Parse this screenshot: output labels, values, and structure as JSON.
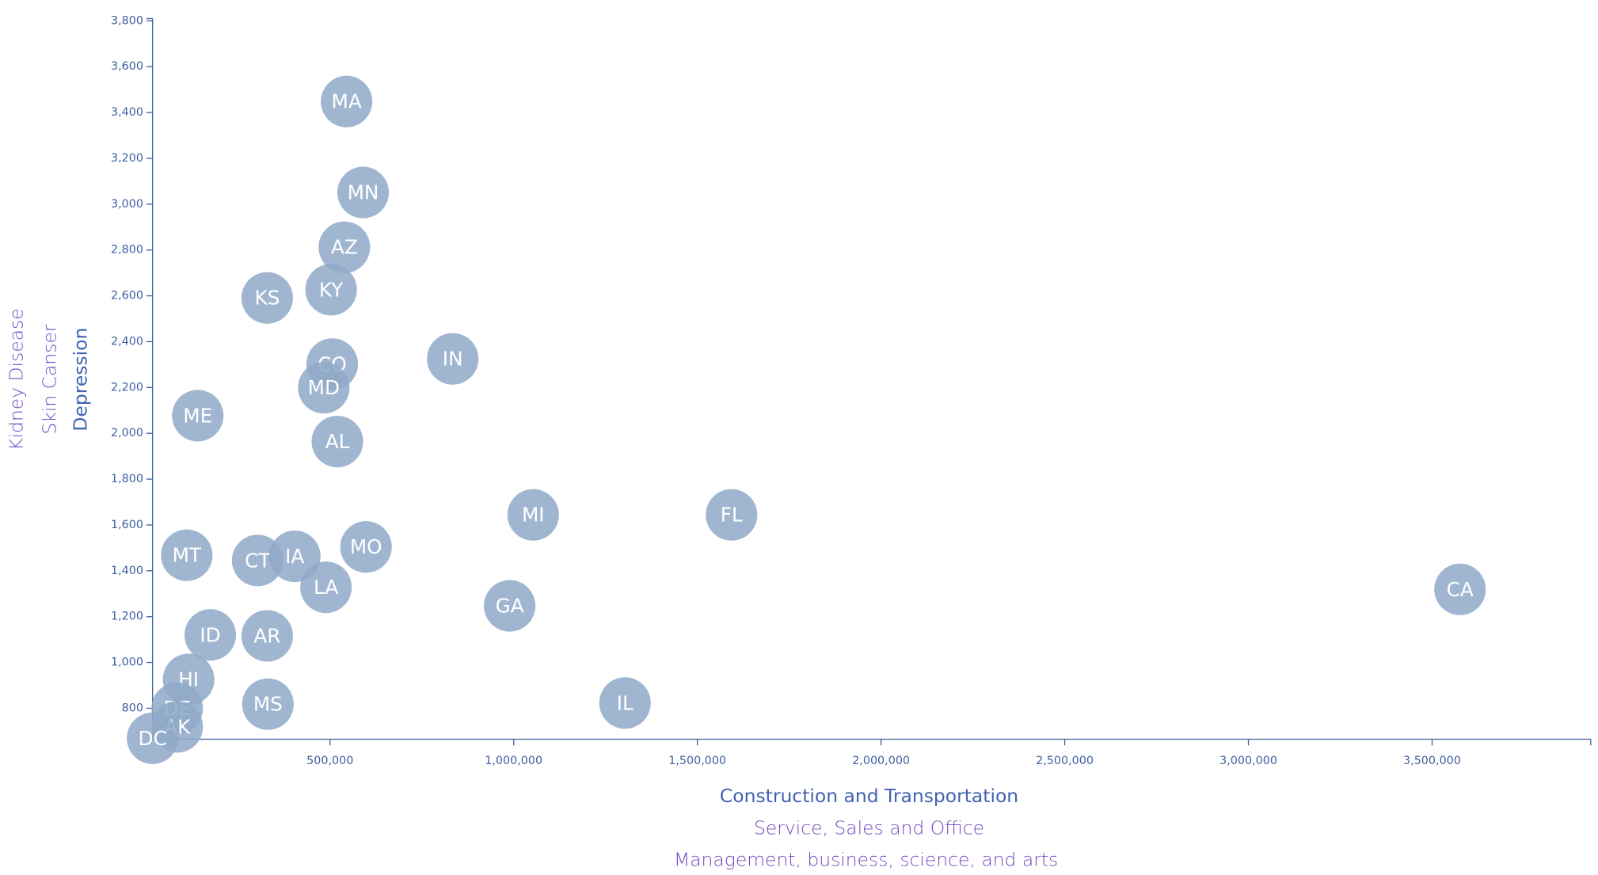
{
  "chart_data": {
    "type": "scatter",
    "labels": [
      "MA",
      "MN",
      "AZ",
      "KY",
      "KS",
      "CO",
      "IN",
      "MD",
      "ME",
      "AL",
      "MI",
      "FL",
      "MT",
      "CT",
      "IA",
      "MO",
      "LA",
      "GA",
      "CA",
      "ID",
      "AR",
      "HI",
      "MS",
      "IL",
      "DE",
      "AK",
      "DC"
    ],
    "x": [
      545000,
      590000,
      539000,
      503000,
      329000,
      506000,
      834000,
      483000,
      140000,
      520000,
      1053000,
      1593000,
      110000,
      303000,
      404000,
      598000,
      489000,
      989000,
      3576000,
      174000,
      329000,
      115000,
      331000,
      1303000,
      84000,
      84000,
      17000
    ],
    "y": [
      3448,
      3051,
      2812,
      2627,
      2591,
      2302,
      2325,
      2199,
      2077,
      1964,
      1644,
      1644,
      1468,
      1445,
      1463,
      1504,
      1328,
      1247,
      1319,
      1120,
      1116,
      926,
      818,
      823,
      800,
      719,
      669
    ],
    "color": "#8fa9c8",
    "x_axis_labels": [
      "Construction and Transportation",
      "Service, Sales and Office",
      "Management, business, science, and arts"
    ],
    "y_axis_labels": [
      "Depression",
      "Skin Canser",
      "Kidney Disease"
    ],
    "xlim": [
      17000,
      3932000
    ],
    "ylim": [
      665,
      3810
    ],
    "xticks": [
      {
        "value": 500000,
        "label": "500,000"
      },
      {
        "value": 1000000,
        "label": "1,000,000"
      },
      {
        "value": 1500000,
        "label": "1,500,000"
      },
      {
        "value": 2000000,
        "label": "2,000,000"
      },
      {
        "value": 2500000,
        "label": "2,500,000"
      },
      {
        "value": 3000000,
        "label": "3,000,000"
      },
      {
        "value": 3500000,
        "label": "3,500,000"
      }
    ],
    "yticks": [
      800,
      {
        "value": 1000,
        "label": "1,000"
      },
      {
        "value": 1200,
        "label": "1,200"
      },
      {
        "value": 1400,
        "label": "1,400"
      },
      {
        "value": 1600,
        "label": "1,600"
      },
      {
        "value": 1800,
        "label": "1,800"
      },
      {
        "value": 2000,
        "label": "2,000"
      },
      {
        "value": 2200,
        "label": "2,200"
      },
      {
        "value": 2400,
        "label": "2,400"
      },
      {
        "value": 2600,
        "label": "2,600"
      },
      {
        "value": 2800,
        "label": "2,800"
      },
      {
        "value": 3000,
        "label": "3,000"
      },
      {
        "value": 3200,
        "label": "3,200"
      },
      {
        "value": 3400,
        "label": "3,400"
      },
      {
        "value": 3600,
        "label": "3,600"
      },
      {
        "value": 3800,
        "label": "3,800"
      }
    ]
  }
}
